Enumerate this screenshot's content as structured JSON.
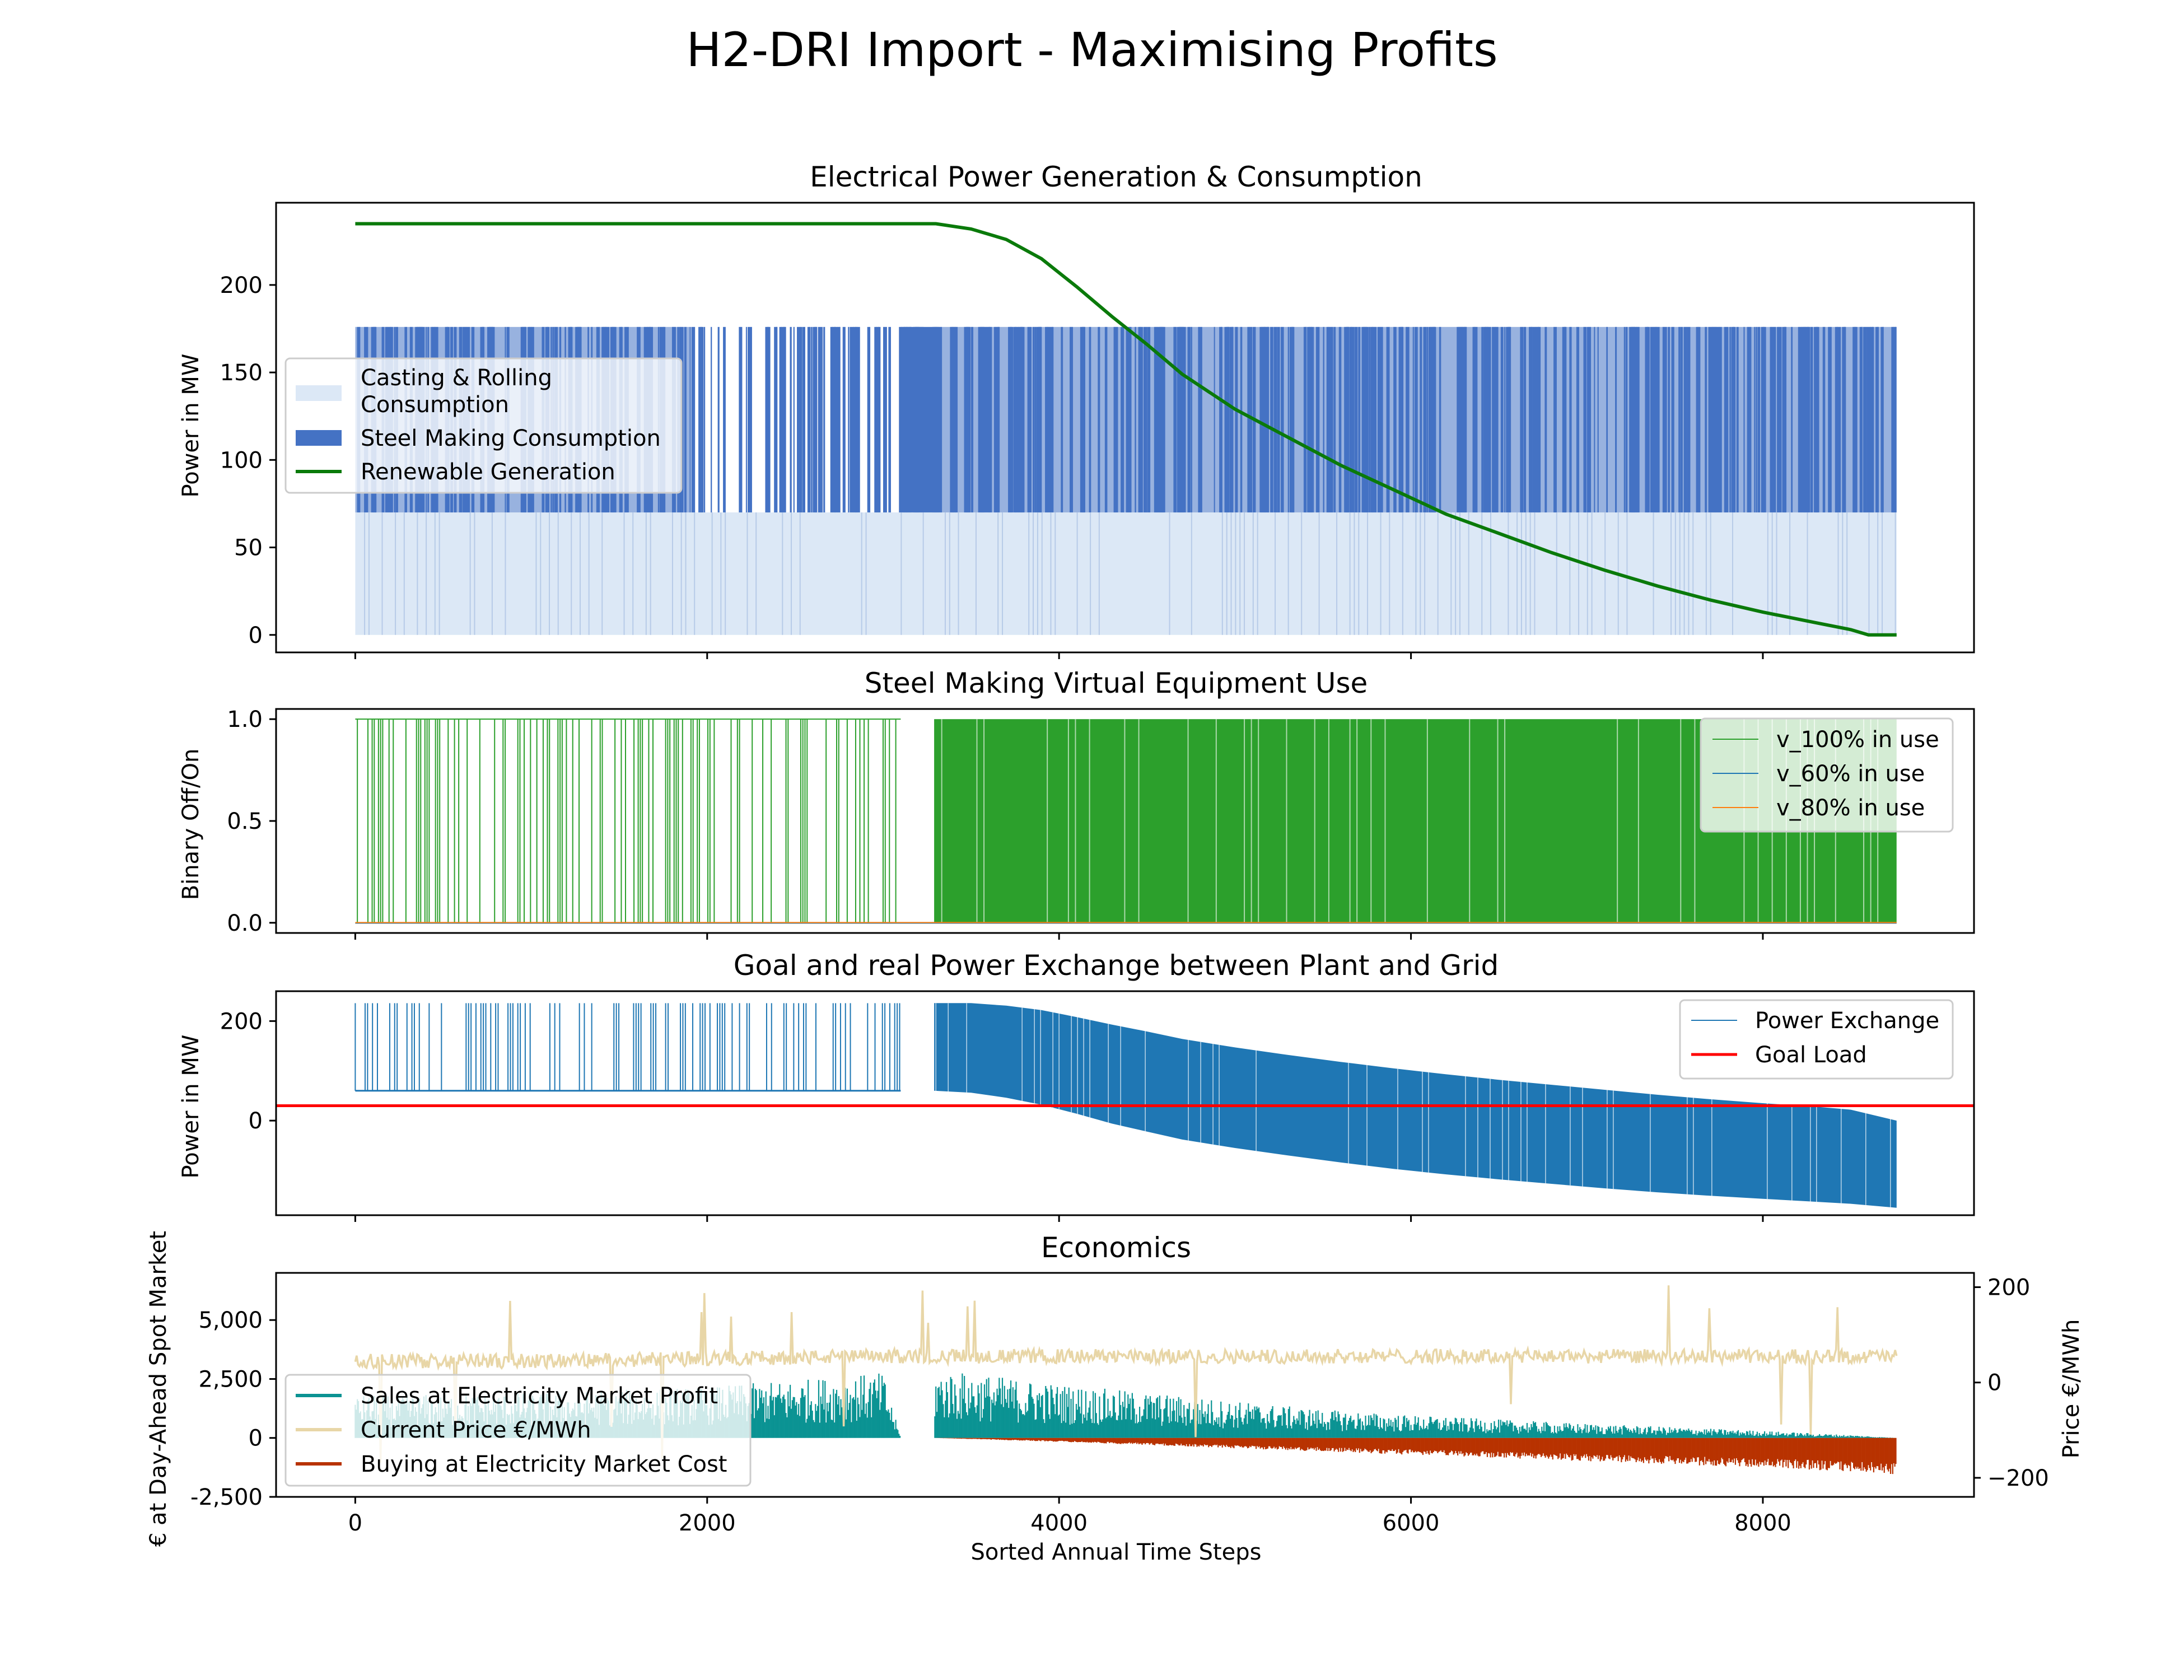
{
  "figure": {
    "title": "H2-DRI Import - Maximising Profits"
  },
  "colors": {
    "casting": "#dce8f6",
    "steel": "#4472c4",
    "renewable": "#0a7a0a",
    "v100": "#2ca02c",
    "v60": "#1f77b4",
    "v80": "#ff7f0e",
    "exchange": "#1f77b4",
    "goal": "#ff0000",
    "sales": "#0b9393",
    "price": "#e8d6a7",
    "cost": "#b83200"
  },
  "chart_data": [
    {
      "type": "area",
      "title": "Electrical Power Generation & Consumption",
      "xlabel": "",
      "ylabel": "Power in MW",
      "xlim": [
        -450,
        9200
      ],
      "ylim": [
        -10,
        247
      ],
      "yticks": [
        0,
        50,
        100,
        150,
        200
      ],
      "xticks": [
        0,
        2000,
        4000,
        6000,
        8000
      ],
      "legend_position": "center-left",
      "series": [
        {
          "name": "Casting & Rolling\nConsumption",
          "kind": "fill",
          "x": [
            0,
            8760
          ],
          "y": [
            70,
            70
          ]
        },
        {
          "name": "Steel Making Consumption",
          "kind": "fill-intermittent",
          "x": [
            0,
            8760
          ],
          "y_low": 70,
          "y_high": 176
        },
        {
          "name": "Renewable Generation",
          "kind": "line",
          "x": [
            0,
            3000,
            3300,
            3500,
            3700,
            3900,
            4100,
            4300,
            4500,
            4700,
            5000,
            5300,
            5600,
            5900,
            6200,
            6500,
            6800,
            7100,
            7400,
            7700,
            8000,
            8300,
            8500,
            8600,
            8700,
            8760
          ],
          "y": [
            235,
            235,
            235,
            232,
            226,
            215,
            199,
            182,
            166,
            149,
            129,
            113,
            97,
            83,
            69,
            58,
            47,
            37,
            28,
            20,
            13,
            7,
            3,
            0,
            0,
            0
          ]
        }
      ]
    },
    {
      "type": "line",
      "title": "Steel Making Virtual Equipment Use",
      "xlabel": "",
      "ylabel": "Binary Off/On",
      "xlim": [
        -450,
        9200
      ],
      "ylim": [
        -0.05,
        1.05
      ],
      "yticks": [
        0.0,
        0.5,
        1.0
      ],
      "ytick_labels": [
        "0.0",
        "0.5",
        "1.0"
      ],
      "xticks": [
        0,
        2000,
        4000,
        6000,
        8000
      ],
      "legend_position": "upper-right",
      "series": [
        {
          "name": "v_100% in use",
          "on_segments": [
            [
              0,
              3100
            ],
            [
              3290,
              8760
            ]
          ]
        },
        {
          "name": "v_60% in use",
          "values": [
            0,
            0
          ]
        },
        {
          "name": "v_80% in use",
          "values": [
            0,
            0
          ]
        }
      ]
    },
    {
      "type": "line",
      "title": "Goal and real Power Exchange between Plant and Grid",
      "xlabel": "",
      "ylabel": "Power in MW",
      "xlim": [
        -450,
        9200
      ],
      "ylim": [
        -190,
        260
      ],
      "yticks": [
        0,
        200
      ],
      "xticks": [
        0,
        2000,
        4000,
        6000,
        8000
      ],
      "legend_position": "upper-right",
      "series": [
        {
          "name": "Power Exchange",
          "x": [
            0,
            3100,
            3290,
            3500,
            3700,
            3900,
            4100,
            4300,
            4500,
            4700,
            5000,
            5300,
            5600,
            5900,
            6200,
            6500,
            6800,
            7100,
            7400,
            7700,
            8000,
            8300,
            8500,
            8760
          ],
          "upper": [
            236,
            236,
            236,
            236,
            231,
            222,
            208,
            193,
            179,
            164,
            147,
            132,
            118,
            105,
            93,
            82,
            72,
            62,
            52,
            43,
            35,
            28,
            22,
            0
          ],
          "lower": [
            60,
            60,
            60,
            56,
            46,
            32,
            14,
            -6,
            -22,
            -38,
            -55,
            -70,
            -84,
            -97,
            -108,
            -118,
            -127,
            -136,
            -144,
            -151,
            -157,
            -163,
            -167,
            -175
          ]
        },
        {
          "name": "Goal Load",
          "y": 30
        }
      ]
    },
    {
      "type": "line",
      "title": "Economics",
      "xlabel": "Sorted Annual Time Steps",
      "ylabel": "€ at Day-Ahead Spot Market",
      "ylabel_right": "Price €/MWh",
      "xlim": [
        -450,
        9200
      ],
      "ylim": [
        -2500,
        7000
      ],
      "ylim_right": [
        -240,
        230
      ],
      "yticks": [
        -2500,
        0,
        2500,
        5000
      ],
      "ytick_labels": [
        "-2,500",
        "0",
        "2,500",
        "5,000"
      ],
      "yticks_right": [
        -200,
        0,
        200
      ],
      "ytick_labels_right": [
        "−200",
        "0",
        "200"
      ],
      "xticks": [
        0,
        2000,
        4000,
        6000,
        8000
      ],
      "xtick_labels": [
        "0",
        "2000",
        "4000",
        "6000",
        "8000"
      ],
      "legend_position": "lower-left",
      "series": [
        {
          "name": "Sales at Electricity Market Profit",
          "x": [
            0,
            1000,
            2000,
            3000,
            3100,
            3290,
            3500,
            4000,
            4500,
            5000,
            5500,
            6000,
            6500,
            7000,
            7500,
            8000,
            8500,
            8760
          ],
          "y": [
            1500,
            1600,
            1800,
            2300,
            0,
            2400,
            2300,
            1900,
            1600,
            1300,
            1000,
            800,
            650,
            500,
            380,
            250,
            100,
            0
          ]
        },
        {
          "name": "Current Price €/MWh",
          "x": [
            0,
            1000,
            2000,
            3000,
            3290,
            4000,
            5000,
            6000,
            7000,
            8000,
            8760
          ],
          "y": [
            45,
            45,
            50,
            55,
            55,
            55,
            55,
            55,
            55,
            55,
            55
          ]
        },
        {
          "name": "Buying at Electricity Market Cost",
          "x": [
            0,
            3290,
            4000,
            5000,
            6000,
            7000,
            8000,
            8760
          ],
          "y": [
            0,
            0,
            -150,
            -400,
            -650,
            -900,
            -1150,
            -1400
          ]
        }
      ]
    }
  ]
}
